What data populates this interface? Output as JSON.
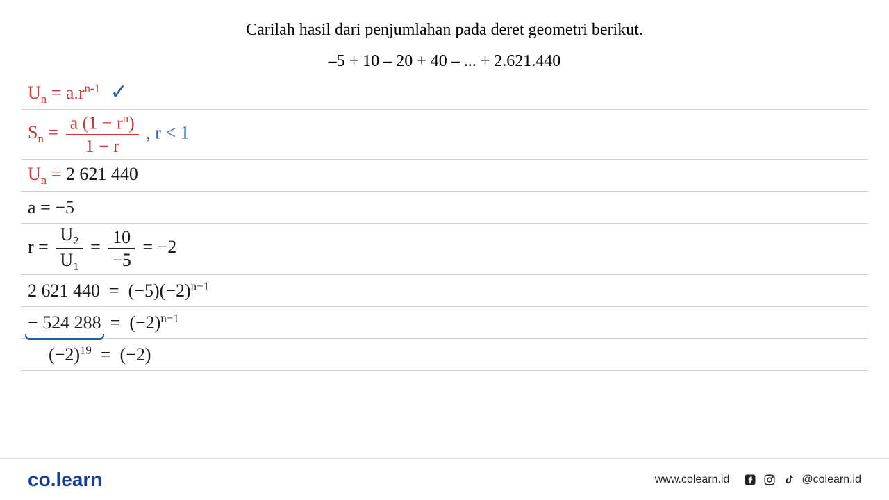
{
  "question": {
    "instruction": "Carilah hasil dari penjumlahan pada deret geometri berikut.",
    "equation": "–5 + 10 – 20 + 40 – ... + 2.621.440"
  },
  "work_lines": [
    {
      "html": "<span class='red'>U<span class='sub'>n</span> = a.r<span class='sup'>n-1</span></span> <span class='check'>✓</span>",
      "height": "normal"
    },
    {
      "html": "<span class='red'>S<span class='sub'>n</span> = <span class='frac'><span class='num'>a (1 − r<span class='sup'>n</span>)</span><span class='den'>1 − r</span></span></span> <span class='blue'>, r &lt; 1</span>",
      "height": "tall"
    },
    {
      "html": "<span class='red'>U<span class='sub'>n</span> = </span><span class='black'> 2 621 440</span>",
      "height": "normal"
    },
    {
      "html": "<span class='black'>a = −5</span>",
      "height": "normal"
    },
    {
      "html": "<span class='black'>r = <span class='frac'><span class='num'>U<span class='sub'>2</span></span><span class='den'>U<span class='sub'>1</span></span></span> = <span class='frac'><span class='num'>10</span><span class='den'>−5</span></span> = −2</span>",
      "height": "normal"
    },
    {
      "html": "<span class='black'>2 621 440 &nbsp;=&nbsp; (−5)(−2)<span class='sup'>n−1</span></span>",
      "height": "normal"
    },
    {
      "html": "<span class='black'><span style='position:relative'>− 524 288<span class='underline-brace' style='left:-4px;right:-4px;bottom:-10px'></span></span> &nbsp;=&nbsp; (−2)<span class='sup'>n−1</span></span>",
      "height": "normal"
    },
    {
      "html": "<span class='black' style='margin-left:30px'>(−2)<span class='sup'>19</span> &nbsp;=&nbsp; (−2)</span>",
      "height": "normal"
    }
  ],
  "footer": {
    "logo_part1": "co",
    "logo_dot": ".",
    "logo_part2": "learn",
    "website": "www.colearn.id",
    "handle": "@colearn.id"
  },
  "colors": {
    "red": "#c93a3a",
    "blue": "#2a5ba8",
    "black": "#1a1a1a",
    "rule": "#d0d0d0",
    "logo": "#1a3d8f",
    "background": "#ffffff"
  }
}
